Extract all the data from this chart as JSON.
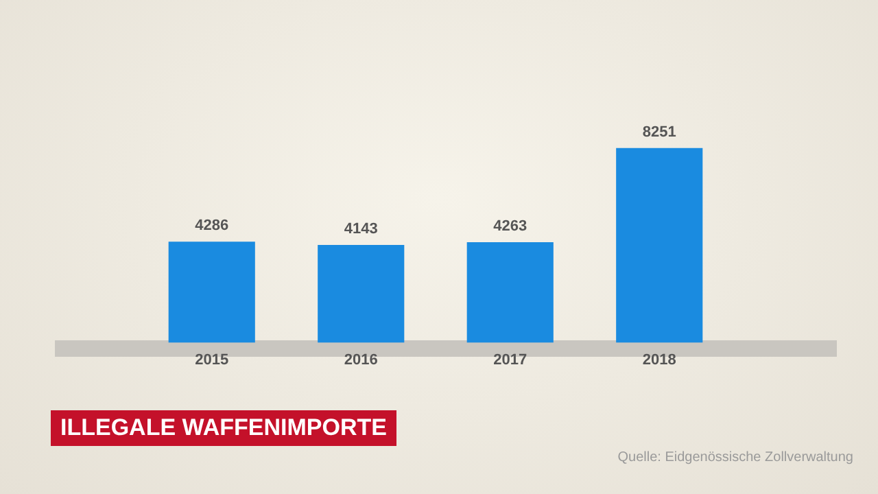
{
  "chart_data": {
    "type": "bar",
    "title": "ILLEGALE WAFFENIMPORTE",
    "annotations": [
      "Quelle: Eidgenössische Zollverwaltung"
    ],
    "categories": [
      "2015",
      "2016",
      "2017",
      "2018"
    ],
    "values": [
      4286,
      4143,
      4263,
      8251
    ],
    "color": "#1a8be0",
    "data_labels": true,
    "grid": false,
    "legend": false,
    "tick_labels": "x"
  }
}
